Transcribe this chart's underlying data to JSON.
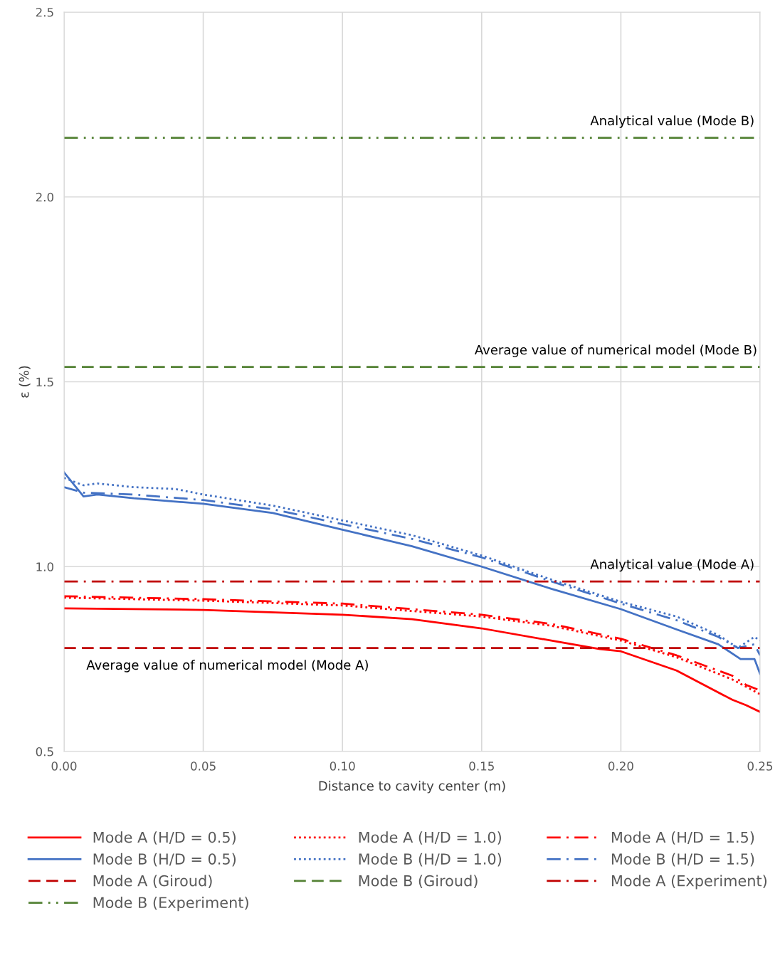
{
  "chart_data": {
    "type": "line",
    "xlabel": "Distance to cavity center (m)",
    "ylabel": "ε (%)",
    "xlim": [
      0,
      0.25
    ],
    "xticks": [
      {
        "value": 0,
        "label": "0.00"
      },
      {
        "value": 0.05,
        "label": "0.05"
      },
      {
        "value": 0.1,
        "label": "0.10"
      },
      {
        "value": 0.15,
        "label": "0.15"
      },
      {
        "value": 0.2,
        "label": "0.20"
      },
      {
        "value": 0.25,
        "label": "0.25"
      }
    ],
    "ylim": [
      0.5,
      2.5
    ],
    "yticks": [
      {
        "value": 0.5,
        "label": "0.5"
      },
      {
        "value": 1.0,
        "label": "1.0"
      },
      {
        "value": 1.5,
        "label": "1.5"
      },
      {
        "value": 2.0,
        "label": "2.0"
      },
      {
        "value": 2.5,
        "label": "2.5"
      }
    ],
    "grid": true,
    "legend": "bottom",
    "series": [
      {
        "name": "Mode A (H/D = 0.5)",
        "color": "#ff0000",
        "line_style": "solid",
        "x": [
          0,
          0.05,
          0.1,
          0.125,
          0.15,
          0.175,
          0.1925,
          0.2,
          0.22,
          0.24,
          0.245,
          0.25
        ],
        "values": [
          0.887,
          0.883,
          0.87,
          0.858,
          0.833,
          0.8,
          0.777,
          0.771,
          0.719,
          0.64,
          0.625,
          0.607
        ]
      },
      {
        "name": "Mode A (H/D = 1.0)",
        "color": "#ff0000",
        "line_style": "dotted",
        "x": [
          0,
          0.05,
          0.1,
          0.15,
          0.175,
          0.2,
          0.22,
          0.24,
          0.25
        ],
        "values": [
          0.916,
          0.908,
          0.895,
          0.865,
          0.84,
          0.8,
          0.755,
          0.695,
          0.655
        ]
      },
      {
        "name": "Mode A (H/D = 1.5)",
        "color": "#ff0000",
        "line_style": "dashdot",
        "x": [
          0,
          0.05,
          0.1,
          0.15,
          0.175,
          0.2,
          0.22,
          0.24,
          0.245,
          0.25
        ],
        "values": [
          0.92,
          0.912,
          0.9,
          0.87,
          0.845,
          0.805,
          0.76,
          0.705,
          0.68,
          0.665
        ]
      },
      {
        "name": "Mode B (H/D = 0.5)",
        "color": "#4472c4",
        "line_style": "solid",
        "x": [
          0,
          0.007,
          0.012,
          0.025,
          0.05,
          0.075,
          0.1,
          0.125,
          0.15,
          0.175,
          0.2,
          0.22,
          0.235,
          0.243,
          0.248,
          0.25
        ],
        "values": [
          1.255,
          1.19,
          1.195,
          1.185,
          1.17,
          1.145,
          1.1,
          1.055,
          1.0,
          0.94,
          0.885,
          0.83,
          0.79,
          0.75,
          0.75,
          0.71
        ]
      },
      {
        "name": "Mode B (H/D = 1.0)",
        "color": "#4472c4",
        "line_style": "dotted",
        "x": [
          0,
          0.007,
          0.012,
          0.025,
          0.04,
          0.05,
          0.075,
          0.1,
          0.125,
          0.15,
          0.175,
          0.2,
          0.22,
          0.235,
          0.242,
          0.248,
          0.25
        ],
        "values": [
          1.24,
          1.22,
          1.225,
          1.215,
          1.21,
          1.195,
          1.165,
          1.125,
          1.085,
          1.03,
          0.965,
          0.905,
          0.865,
          0.815,
          0.78,
          0.81,
          0.8
        ]
      },
      {
        "name": "Mode B (H/D = 1.5)",
        "color": "#4472c4",
        "line_style": "dashdot",
        "x": [
          0,
          0.007,
          0.025,
          0.05,
          0.075,
          0.1,
          0.125,
          0.15,
          0.175,
          0.2,
          0.22,
          0.235,
          0.242,
          0.248,
          0.25
        ],
        "values": [
          1.215,
          1.2,
          1.195,
          1.18,
          1.155,
          1.115,
          1.075,
          1.025,
          0.96,
          0.9,
          0.855,
          0.81,
          0.78,
          0.79,
          0.76
        ]
      },
      {
        "name": "Mode A (Giroud)",
        "color": "#c00000",
        "line_style": "dashed",
        "x": [
          0,
          0.25
        ],
        "values": [
          0.78,
          0.78
        ]
      },
      {
        "name": "Mode B (Giroud)",
        "color": "#548235",
        "line_style": "dashed",
        "x": [
          0,
          0.25
        ],
        "values": [
          1.54,
          1.54
        ]
      },
      {
        "name": "Mode A (Experiment)",
        "color": "#c00000",
        "line_style": "dashdot",
        "x": [
          0,
          0.25
        ],
        "values": [
          0.96,
          0.96
        ]
      },
      {
        "name": "Mode B (Experiment)",
        "color": "#548235",
        "line_style": "dashdotdot",
        "x": [
          0,
          0.25
        ],
        "values": [
          2.16,
          2.16
        ]
      }
    ],
    "annotations": [
      {
        "text": "Analytical value (Mode B)",
        "x": 0.248,
        "y": 2.16
      },
      {
        "text": "Average value of numerical model (Mode B)",
        "x": 0.249,
        "y": 1.54
      },
      {
        "text": "Analytical value (Mode A)",
        "x": 0.248,
        "y": 0.96
      },
      {
        "text": "Average value of numerical model (Mode A)",
        "x": 0.008,
        "y": 0.78
      }
    ]
  }
}
